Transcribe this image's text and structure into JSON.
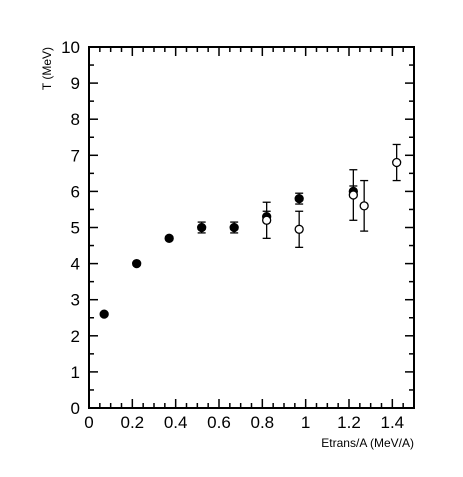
{
  "chart_data": {
    "type": "scatter",
    "xlabel": "Etrans/A (MeV/A)",
    "ylabel": "T (MeV)",
    "xlim": [
      0,
      1.5
    ],
    "ylim": [
      0,
      10
    ],
    "x_ticks": [
      "0",
      "0.2",
      "0.4",
      "0.6",
      "0.8",
      "1",
      "1.2",
      "1.4"
    ],
    "y_ticks": [
      "0",
      "1",
      "2",
      "3",
      "4",
      "5",
      "6",
      "7",
      "8",
      "9",
      "10"
    ],
    "grid": false,
    "series": [
      {
        "marker": "filled-circle",
        "points": [
          {
            "x": 0.07,
            "y": 2.6,
            "err": 0.0
          },
          {
            "x": 0.22,
            "y": 4.0,
            "err": 0.0
          },
          {
            "x": 0.37,
            "y": 4.7,
            "err": 0.05
          },
          {
            "x": 0.52,
            "y": 5.0,
            "err": 0.15
          },
          {
            "x": 0.67,
            "y": 5.0,
            "err": 0.15
          },
          {
            "x": 0.82,
            "y": 5.3,
            "err": 0.15
          },
          {
            "x": 0.97,
            "y": 5.8,
            "err": 0.15
          },
          {
            "x": 1.22,
            "y": 6.0,
            "err": 0.15
          }
        ]
      },
      {
        "marker": "open-circle",
        "points": [
          {
            "x": 0.82,
            "y": 5.2,
            "err": 0.5
          },
          {
            "x": 0.97,
            "y": 4.95,
            "err": 0.5
          },
          {
            "x": 1.22,
            "y": 5.9,
            "err": 0.7
          },
          {
            "x": 1.27,
            "y": 5.6,
            "err": 0.7
          },
          {
            "x": 1.42,
            "y": 6.8,
            "err": 0.5
          }
        ]
      }
    ]
  }
}
